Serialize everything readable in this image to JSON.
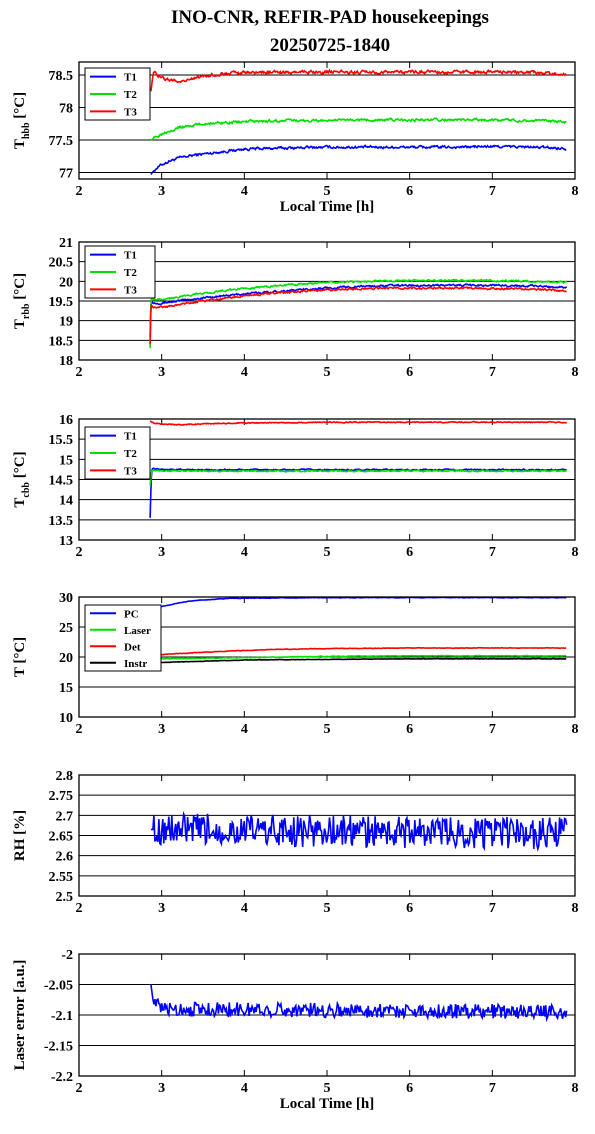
{
  "title_line1": "INO-CNR, REFIR-PAD housekeepings",
  "title_line2": "20250725-1840",
  "colors": {
    "blue": "#0000ff",
    "green": "#00e000",
    "red": "#ff0000",
    "black": "#000000"
  },
  "chart_data": [
    {
      "type": "line",
      "ylabel": "T",
      "ylabel_sub": "hbb",
      "ylabel_unit": "[°C]",
      "xlabel": "Local Time [h]",
      "xlim": [
        2,
        8
      ],
      "xticks": [
        2,
        3,
        4,
        5,
        6,
        7,
        8
      ],
      "ylim": [
        76.9,
        78.7
      ],
      "yticks": [
        77,
        77.5,
        78,
        78.5
      ],
      "ytick_labels": [
        "77",
        "77.5",
        "78",
        "78.5"
      ],
      "legend": "top-left",
      "series": [
        {
          "name": "T1",
          "color": "blue",
          "x": [
            2.87,
            2.9,
            2.95,
            3.0,
            3.1,
            3.2,
            3.4,
            3.6,
            3.8,
            4.0,
            4.3,
            4.6,
            5.0,
            5.5,
            6.0,
            6.5,
            7.0,
            7.5,
            7.9
          ],
          "y": [
            76.97,
            77.02,
            77.08,
            77.12,
            77.18,
            77.22,
            77.27,
            77.3,
            77.33,
            77.36,
            77.37,
            77.38,
            77.39,
            77.39,
            77.39,
            77.39,
            77.4,
            77.39,
            77.37
          ],
          "noise": 0.025
        },
        {
          "name": "T2",
          "color": "green",
          "x": [
            2.87,
            2.9,
            2.95,
            3.0,
            3.1,
            3.2,
            3.4,
            3.6,
            3.8,
            4.0,
            4.3,
            4.6,
            5.0,
            5.5,
            6.0,
            6.5,
            7.0,
            7.5,
            7.9
          ],
          "y": [
            77.5,
            77.52,
            77.56,
            77.6,
            77.65,
            77.69,
            77.73,
            77.76,
            77.77,
            77.78,
            77.79,
            77.8,
            77.8,
            77.81,
            77.81,
            77.81,
            77.81,
            77.8,
            77.78
          ],
          "noise": 0.025
        },
        {
          "name": "T3",
          "color": "red",
          "x": [
            2.87,
            2.9,
            2.95,
            3.0,
            3.1,
            3.2,
            3.4,
            3.6,
            3.8,
            4.0,
            4.5,
            5.0,
            5.5,
            6.0,
            6.5,
            7.0,
            7.5,
            7.9
          ],
          "y": [
            78.25,
            78.55,
            78.5,
            78.45,
            78.42,
            78.4,
            78.45,
            78.5,
            78.52,
            78.54,
            78.54,
            78.55,
            78.54,
            78.55,
            78.54,
            78.55,
            78.54,
            78.52
          ],
          "noise": 0.03
        }
      ]
    },
    {
      "type": "line",
      "ylabel": "T",
      "ylabel_sub": "rbb",
      "ylabel_unit": "[°C]",
      "xlabel": "",
      "xlim": [
        2,
        8
      ],
      "xticks": [
        2,
        3,
        4,
        5,
        6,
        7,
        8
      ],
      "ylim": [
        18,
        21
      ],
      "yticks": [
        18,
        18.5,
        19,
        19.5,
        20,
        20.5,
        21
      ],
      "ytick_labels": [
        "18",
        "18.5",
        "19",
        "19.5",
        "20",
        "20.5",
        "21"
      ],
      "legend": "top-left",
      "series": [
        {
          "name": "T1",
          "color": "blue",
          "x": [
            2.86,
            2.87,
            2.9,
            3.0,
            3.2,
            3.5,
            4.0,
            4.5,
            5.0,
            5.5,
            6.0,
            6.5,
            7.0,
            7.5,
            7.9
          ],
          "y": [
            18.6,
            19.5,
            19.45,
            19.45,
            19.5,
            19.58,
            19.68,
            19.76,
            19.83,
            19.88,
            19.9,
            19.9,
            19.9,
            19.88,
            19.85
          ],
          "noise": 0.03
        },
        {
          "name": "T2",
          "color": "green",
          "x": [
            2.86,
            2.87,
            2.9,
            3.0,
            3.2,
            3.5,
            4.0,
            4.5,
            5.0,
            5.5,
            6.0,
            6.5,
            7.0,
            7.5,
            7.9
          ],
          "y": [
            18.3,
            19.55,
            19.55,
            19.55,
            19.6,
            19.7,
            19.82,
            19.9,
            19.97,
            20.0,
            20.02,
            20.02,
            20.02,
            20.0,
            19.97
          ],
          "noise": 0.03
        },
        {
          "name": "T3",
          "color": "red",
          "x": [
            2.86,
            2.87,
            2.9,
            3.0,
            3.2,
            3.5,
            4.0,
            4.5,
            5.0,
            5.5,
            6.0,
            6.5,
            7.0,
            7.5,
            7.9
          ],
          "y": [
            18.4,
            19.4,
            19.35,
            19.35,
            19.4,
            19.5,
            19.63,
            19.72,
            19.78,
            19.82,
            19.83,
            19.83,
            19.82,
            19.8,
            19.77
          ],
          "noise": 0.03
        }
      ]
    },
    {
      "type": "line",
      "ylabel": "T",
      "ylabel_sub": "cbb",
      "ylabel_unit": "[°C]",
      "xlabel": "",
      "xlim": [
        2,
        8
      ],
      "xticks": [
        2,
        3,
        4,
        5,
        6,
        7,
        8
      ],
      "ylim": [
        13,
        16
      ],
      "yticks": [
        13,
        13.5,
        14,
        14.5,
        15,
        15.5,
        16
      ],
      "ytick_labels": [
        "13",
        "13.5",
        "14",
        "14.5",
        "15",
        "15.5",
        "16"
      ],
      "legend": "top-left",
      "series": [
        {
          "name": "T1",
          "color": "blue",
          "x": [
            2.86,
            2.87,
            2.88,
            2.9,
            3.0,
            3.5,
            4.0,
            5.0,
            6.0,
            7.0,
            7.9
          ],
          "y": [
            13.55,
            14.3,
            14.75,
            14.77,
            14.75,
            14.74,
            14.74,
            14.74,
            14.74,
            14.74,
            14.74
          ],
          "noise": 0.02
        },
        {
          "name": "T2",
          "color": "green",
          "x": [
            2.86,
            2.87,
            2.88,
            2.9,
            3.0,
            3.5,
            4.0,
            5.0,
            6.0,
            7.0,
            7.9
          ],
          "y": [
            14.35,
            14.6,
            14.72,
            14.73,
            14.72,
            14.71,
            14.71,
            14.71,
            14.71,
            14.71,
            14.71
          ],
          "noise": 0.02
        },
        {
          "name": "T3",
          "color": "red",
          "x": [
            2.86,
            2.9,
            3.0,
            3.2,
            3.5,
            4.0,
            5.0,
            6.0,
            7.0,
            7.9
          ],
          "y": [
            15.95,
            15.9,
            15.88,
            15.86,
            15.88,
            15.9,
            15.92,
            15.92,
            15.92,
            15.92
          ],
          "noise": 0.015
        }
      ]
    },
    {
      "type": "line",
      "ylabel": "T [°C]",
      "ylabel_sub": "",
      "ylabel_unit": "",
      "xlabel": "",
      "xlim": [
        2,
        8
      ],
      "xticks": [
        2,
        3,
        4,
        5,
        6,
        7,
        8
      ],
      "ylim": [
        10,
        30
      ],
      "yticks": [
        10,
        15,
        20,
        25,
        30
      ],
      "ytick_labels": [
        "10",
        "15",
        "20",
        "25",
        "30"
      ],
      "legend": "top-left",
      "series": [
        {
          "name": "PC",
          "color": "blue",
          "x": [
            2.87,
            2.9,
            3.0,
            3.2,
            3.4,
            3.6,
            3.8,
            4.0,
            4.5,
            5.0,
            5.5,
            6.0,
            7.0,
            7.9
          ],
          "y": [
            27.2,
            27.8,
            28.4,
            29.0,
            29.4,
            29.6,
            29.75,
            29.8,
            29.85,
            29.9,
            29.9,
            29.9,
            29.9,
            29.9
          ],
          "noise": 0.05
        },
        {
          "name": "Laser",
          "color": "green",
          "x": [
            2.87,
            3.0,
            3.5,
            4.0,
            5.0,
            6.0,
            7.0,
            7.9
          ],
          "y": [
            19.6,
            19.7,
            19.8,
            19.9,
            20.1,
            20.2,
            20.2,
            20.2
          ],
          "noise": 0.06
        },
        {
          "name": "Det",
          "color": "red",
          "x": [
            2.87,
            3.0,
            3.5,
            4.0,
            4.5,
            5.0,
            6.0,
            7.0,
            7.9
          ],
          "y": [
            20.2,
            20.4,
            20.8,
            21.1,
            21.3,
            21.4,
            21.5,
            21.5,
            21.5
          ],
          "noise": 0.05
        },
        {
          "name": "Instr",
          "color": "black",
          "x": [
            2.87,
            3.0,
            3.5,
            4.0,
            5.0,
            6.0,
            7.0,
            7.9
          ],
          "y": [
            19.0,
            19.1,
            19.3,
            19.5,
            19.6,
            19.7,
            19.7,
            19.7
          ],
          "noise": 0.04
        }
      ]
    },
    {
      "type": "line",
      "ylabel": "RH [%]",
      "ylabel_sub": "",
      "ylabel_unit": "",
      "xlabel": "",
      "xlim": [
        2,
        8
      ],
      "xticks": [
        2,
        3,
        4,
        5,
        6,
        7,
        8
      ],
      "ylim": [
        2.5,
        2.8
      ],
      "yticks": [
        2.5,
        2.55,
        2.6,
        2.65,
        2.7,
        2.75,
        2.8
      ],
      "ytick_labels": [
        "2.5",
        "2.55",
        "2.6",
        "2.65",
        "2.7",
        "2.75",
        "2.8"
      ],
      "series": [
        {
          "name": "",
          "color": "blue",
          "x": [
            2.87,
            7.9
          ],
          "y": [
            2.665,
            2.655
          ],
          "noise": 0.04,
          "jagged": true
        }
      ]
    },
    {
      "type": "line",
      "ylabel": "Laser error [a.u.]",
      "ylabel_sub": "",
      "ylabel_unit": "",
      "xlabel": "Local Time [h]",
      "xlim": [
        2,
        8
      ],
      "xticks": [
        2,
        3,
        4,
        5,
        6,
        7,
        8
      ],
      "ylim": [
        -2.2,
        -2.0
      ],
      "yticks": [
        -2.2,
        -2.15,
        -2.1,
        -2.05,
        -2.0
      ],
      "ytick_labels": [
        "-2.2",
        "-2.15",
        "-2.1",
        "-2.05",
        "-2"
      ],
      "series": [
        {
          "name": "",
          "color": "blue",
          "x": [
            2.87,
            2.9,
            3.0,
            7.9
          ],
          "y": [
            -2.05,
            -2.08,
            -2.09,
            -2.095
          ],
          "noise": 0.012,
          "jagged": true
        }
      ]
    }
  ]
}
